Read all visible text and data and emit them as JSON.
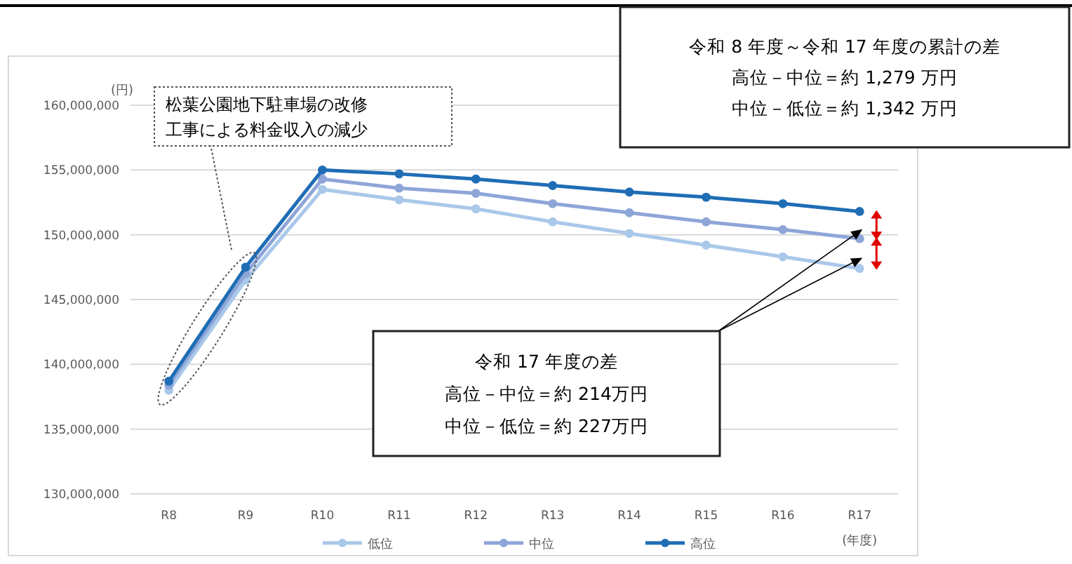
{
  "chart_data": {
    "type": "line",
    "ylabel": "(円)",
    "xlabel": "(年度)",
    "categories": [
      "R8",
      "R9",
      "R10",
      "R11",
      "R12",
      "R13",
      "R14",
      "R15",
      "R16",
      "R17"
    ],
    "series": [
      {
        "name": "低位",
        "color": "#a9c8ea",
        "values": [
          138000000,
          146500000,
          153500000,
          152700000,
          152000000,
          151000000,
          150100000,
          149200000,
          148300000,
          147400000
        ]
      },
      {
        "name": "中位",
        "color": "#8ea5d8",
        "values": [
          138400000,
          147000000,
          154300000,
          153600000,
          153200000,
          152400000,
          151700000,
          151000000,
          150400000,
          149700000
        ]
      },
      {
        "name": "高位",
        "color": "#1f6db5",
        "values": [
          138700000,
          147500000,
          155000000,
          154700000,
          154300000,
          153800000,
          153300000,
          152900000,
          152400000,
          151800000
        ]
      }
    ],
    "ylim": [
      130000000,
      160000000
    ],
    "yticks": [
      {
        "value": 130000000,
        "label": "130,000,000"
      },
      {
        "value": 135000000,
        "label": "135,000,000"
      },
      {
        "value": 140000000,
        "label": "140,000,000"
      },
      {
        "value": 145000000,
        "label": "145,000,000"
      },
      {
        "value": 150000000,
        "label": "150,000,000"
      },
      {
        "value": 155000000,
        "label": "155,000,000"
      },
      {
        "value": 160000000,
        "label": "160,000,000"
      }
    ],
    "grid": "y",
    "legend": "bottom",
    "marker": "circle",
    "line_style": "solid",
    "annotations": [
      "松葉公園地下駐車場の改修",
      "工事による料金収入の減少",
      "令和 8 年度～令和 17 年度の累計の差",
      "高位－中位＝約 1,279 万円",
      "中位－低位＝約 1,342 万円",
      "令和 17 年度の差",
      "高位－中位＝約 214万円",
      "中位－低位＝約 227万円"
    ]
  }
}
